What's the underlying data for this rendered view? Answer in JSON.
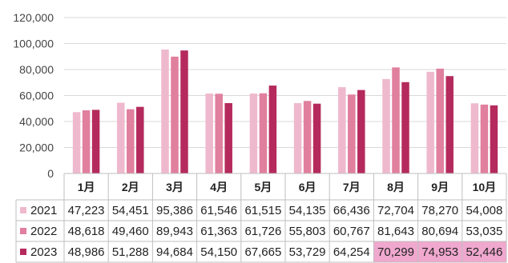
{
  "chart_data": {
    "type": "bar",
    "title": "",
    "xlabel": "",
    "ylabel": "",
    "ylim": [
      0,
      120000
    ],
    "yticks": [
      0,
      20000,
      40000,
      60000,
      80000,
      100000,
      120000
    ],
    "ytick_labels": [
      "0",
      "20,000",
      "40,000",
      "60,000",
      "80,000",
      "100,000",
      "120,000"
    ],
    "grid": true,
    "legend": "data-table-below",
    "categories": [
      "1月",
      "2月",
      "3月",
      "4月",
      "5月",
      "6月",
      "7月",
      "8月",
      "9月",
      "10月"
    ],
    "series": [
      {
        "name": "2021",
        "color": "#efb9cd",
        "values": [
          47223,
          54451,
          95386,
          61546,
          61515,
          54135,
          66436,
          72704,
          78270,
          54008
        ],
        "labels": [
          "47,223",
          "54,451",
          "95,386",
          "61,546",
          "61,515",
          "54,135",
          "66,436",
          "72,704",
          "78,270",
          "54,008"
        ]
      },
      {
        "name": "2022",
        "color": "#e17f9e",
        "values": [
          48618,
          49460,
          89943,
          61363,
          61726,
          55803,
          60767,
          81643,
          80694,
          53035
        ],
        "labels": [
          "48,618",
          "49,460",
          "89,943",
          "61,363",
          "61,726",
          "55,803",
          "60,767",
          "81,643",
          "80,694",
          "53,035"
        ]
      },
      {
        "name": "2023",
        "color": "#b52a5c",
        "values": [
          48986,
          51288,
          94684,
          54150,
          67665,
          53729,
          64254,
          70299,
          74953,
          52446
        ],
        "labels": [
          "48,986",
          "51,288",
          "94,684",
          "54,150",
          "67,665",
          "53,729",
          "64,254",
          "70,299",
          "74,953",
          "52,446"
        ]
      }
    ],
    "highlighted_cells": [
      {
        "series": 2,
        "category": 7
      },
      {
        "series": 2,
        "category": 8
      },
      {
        "series": 2,
        "category": 9
      }
    ],
    "highlight_color": "#f0a8cf"
  }
}
